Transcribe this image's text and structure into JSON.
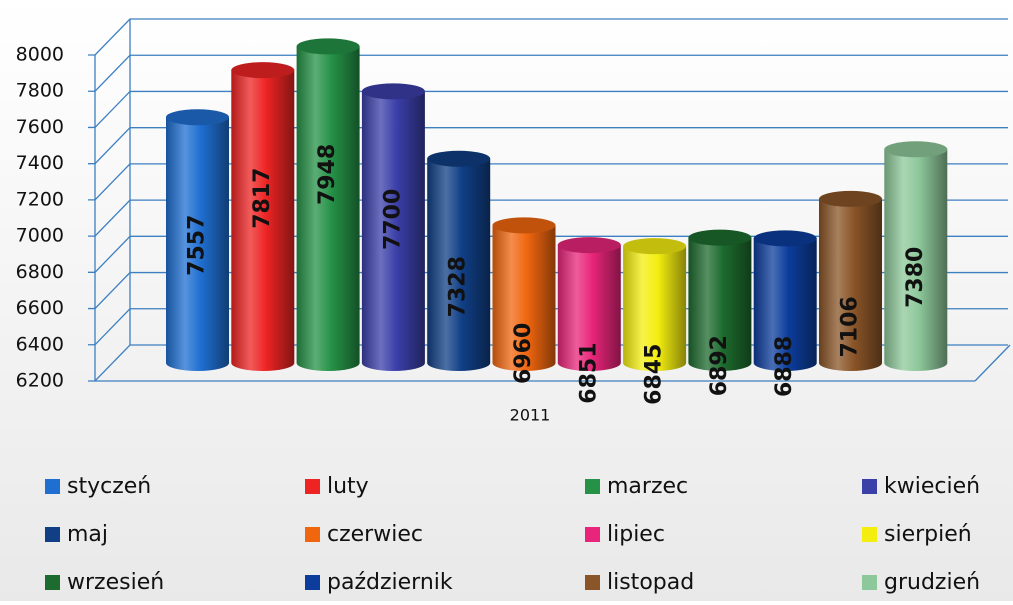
{
  "chart_data": {
    "type": "bar",
    "categories": [
      "2011"
    ],
    "series": [
      {
        "name": "styczeń",
        "color": "#1f6fd1",
        "values": [
          7557
        ]
      },
      {
        "name": "luty",
        "color": "#ee2424",
        "values": [
          7817
        ]
      },
      {
        "name": "marzec",
        "color": "#259247",
        "values": [
          7948
        ]
      },
      {
        "name": "kwiecień",
        "color": "#3b3fa8",
        "values": [
          7700
        ]
      },
      {
        "name": "maj",
        "color": "#103f85",
        "values": [
          7328
        ]
      },
      {
        "name": "czerwiec",
        "color": "#f0660f",
        "values": [
          6960
        ]
      },
      {
        "name": "lipiec",
        "color": "#e8257a",
        "values": [
          6851
        ]
      },
      {
        "name": "sierpień",
        "color": "#f4ee10",
        "values": [
          6845
        ]
      },
      {
        "name": "wrzesień",
        "color": "#1d6b2e",
        "values": [
          6892
        ]
      },
      {
        "name": "październik",
        "color": "#0c3d9c",
        "values": [
          6888
        ]
      },
      {
        "name": "listopad",
        "color": "#8a5528",
        "values": [
          7106
        ]
      },
      {
        "name": "grudzień",
        "color": "#8dc89a",
        "values": [
          7380
        ]
      }
    ],
    "ylim": [
      6200,
      8000
    ],
    "yticks": [
      6200,
      6400,
      6600,
      6800,
      7000,
      7200,
      7400,
      7600,
      7800,
      8000
    ],
    "grid": true,
    "legend": "bottom"
  }
}
